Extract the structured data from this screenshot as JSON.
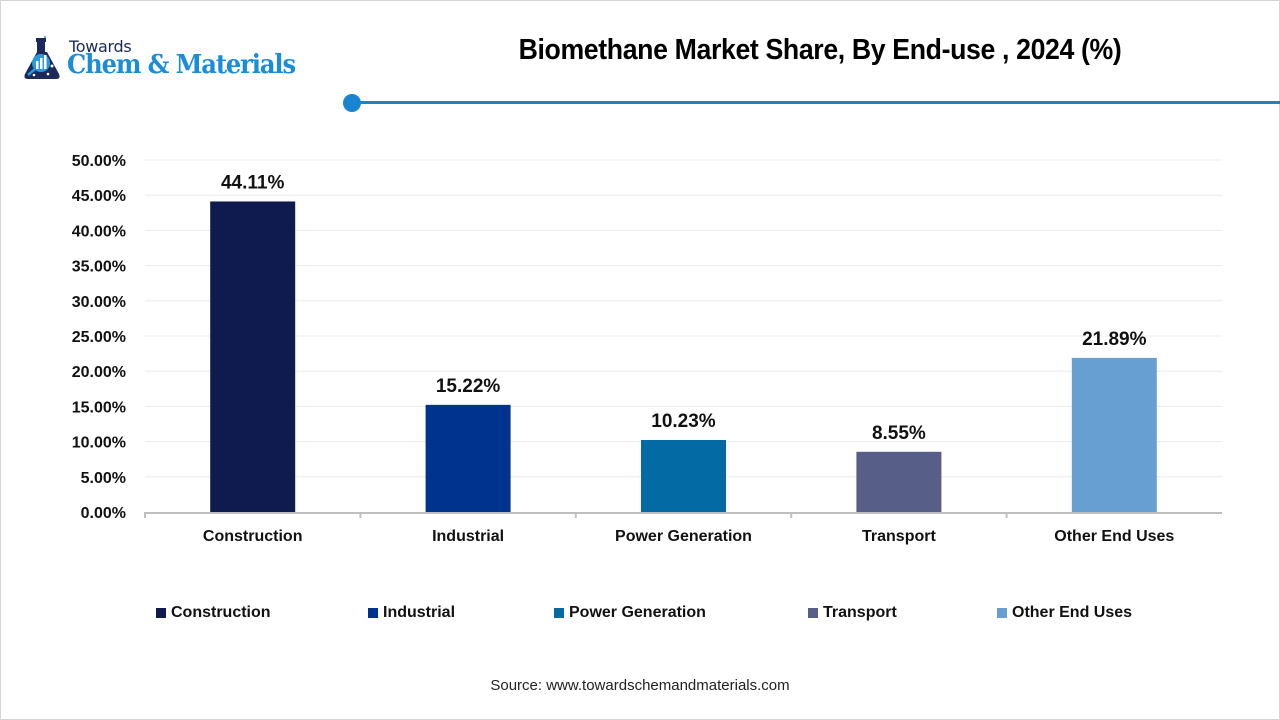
{
  "brand": {
    "top_text": "Towards",
    "main_text": "Chem & Materials",
    "icon": "flask-chart-icon",
    "colors": {
      "navy": "#1b2a5a",
      "blue": "#1a8cd8"
    }
  },
  "header": {
    "title": "Biomethane Market Share, By End-use , 2024 (%)",
    "accent_color": "#1c84c6"
  },
  "chart_data": {
    "type": "bar",
    "title": "Biomethane Market Share, By End-use , 2024 (%)",
    "xlabel": "",
    "ylabel": "",
    "categories": [
      "Construction",
      "Industrial",
      "Power Generation",
      "Transport",
      "Other End Uses"
    ],
    "values": [
      44.11,
      15.22,
      10.23,
      8.55,
      21.89
    ],
    "value_labels": [
      "44.11%",
      "15.22%",
      "10.23%",
      "8.55%",
      "21.89%"
    ],
    "colors": [
      "#0F1A4F",
      "#00338D",
      "#046AA3",
      "#575E87",
      "#679FD3"
    ],
    "ylim": [
      0,
      50
    ],
    "yticks": [
      0,
      5,
      10,
      15,
      20,
      25,
      30,
      35,
      40,
      45,
      50
    ],
    "ytick_labels": [
      "0.00%",
      "5.00%",
      "10.00%",
      "15.00%",
      "20.00%",
      "25.00%",
      "30.00%",
      "35.00%",
      "40.00%",
      "45.00%",
      "50.00%"
    ],
    "grid": true,
    "legend": {
      "placement": "bottom",
      "entries": [
        "Construction",
        "Industrial",
        "Power Generation",
        "Transport",
        "Other End Uses"
      ]
    }
  },
  "footer": {
    "source": "Source: www.towardschemandmaterials.com"
  }
}
